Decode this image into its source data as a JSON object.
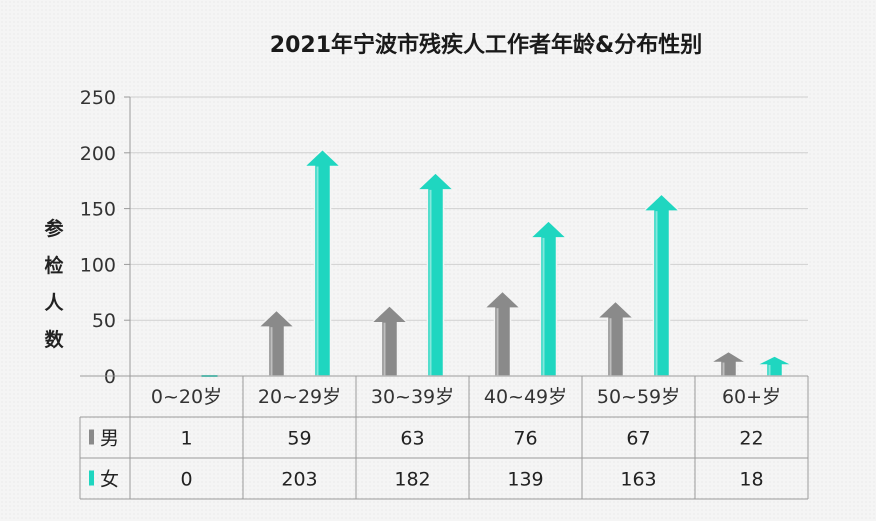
{
  "chart_data": {
    "type": "bar",
    "title": "2021年宁波市残疾人工作者年龄&分布性别",
    "ylabel_chars": [
      "参",
      "检",
      "人",
      "数"
    ],
    "ylim": [
      0,
      250
    ],
    "yticks": [
      "0",
      "50",
      "100",
      "150",
      "200",
      "250"
    ],
    "categories": [
      "0~20岁",
      "20~29岁",
      "30~39岁",
      "40~49岁",
      "50~59岁",
      "60+岁"
    ],
    "series": [
      {
        "name": "男",
        "values": [
          1,
          59,
          63,
          76,
          67,
          22
        ],
        "color": "#8a8a8a"
      },
      {
        "name": "女",
        "values": [
          0,
          203,
          182,
          139,
          163,
          18
        ],
        "color": "#1fd6c0"
      }
    ],
    "data_table": [
      [
        "1",
        "59",
        "63",
        "76",
        "67",
        "22"
      ],
      [
        "0",
        "203",
        "182",
        "139",
        "163",
        "18"
      ]
    ],
    "grid": true,
    "legend": "data-table"
  }
}
